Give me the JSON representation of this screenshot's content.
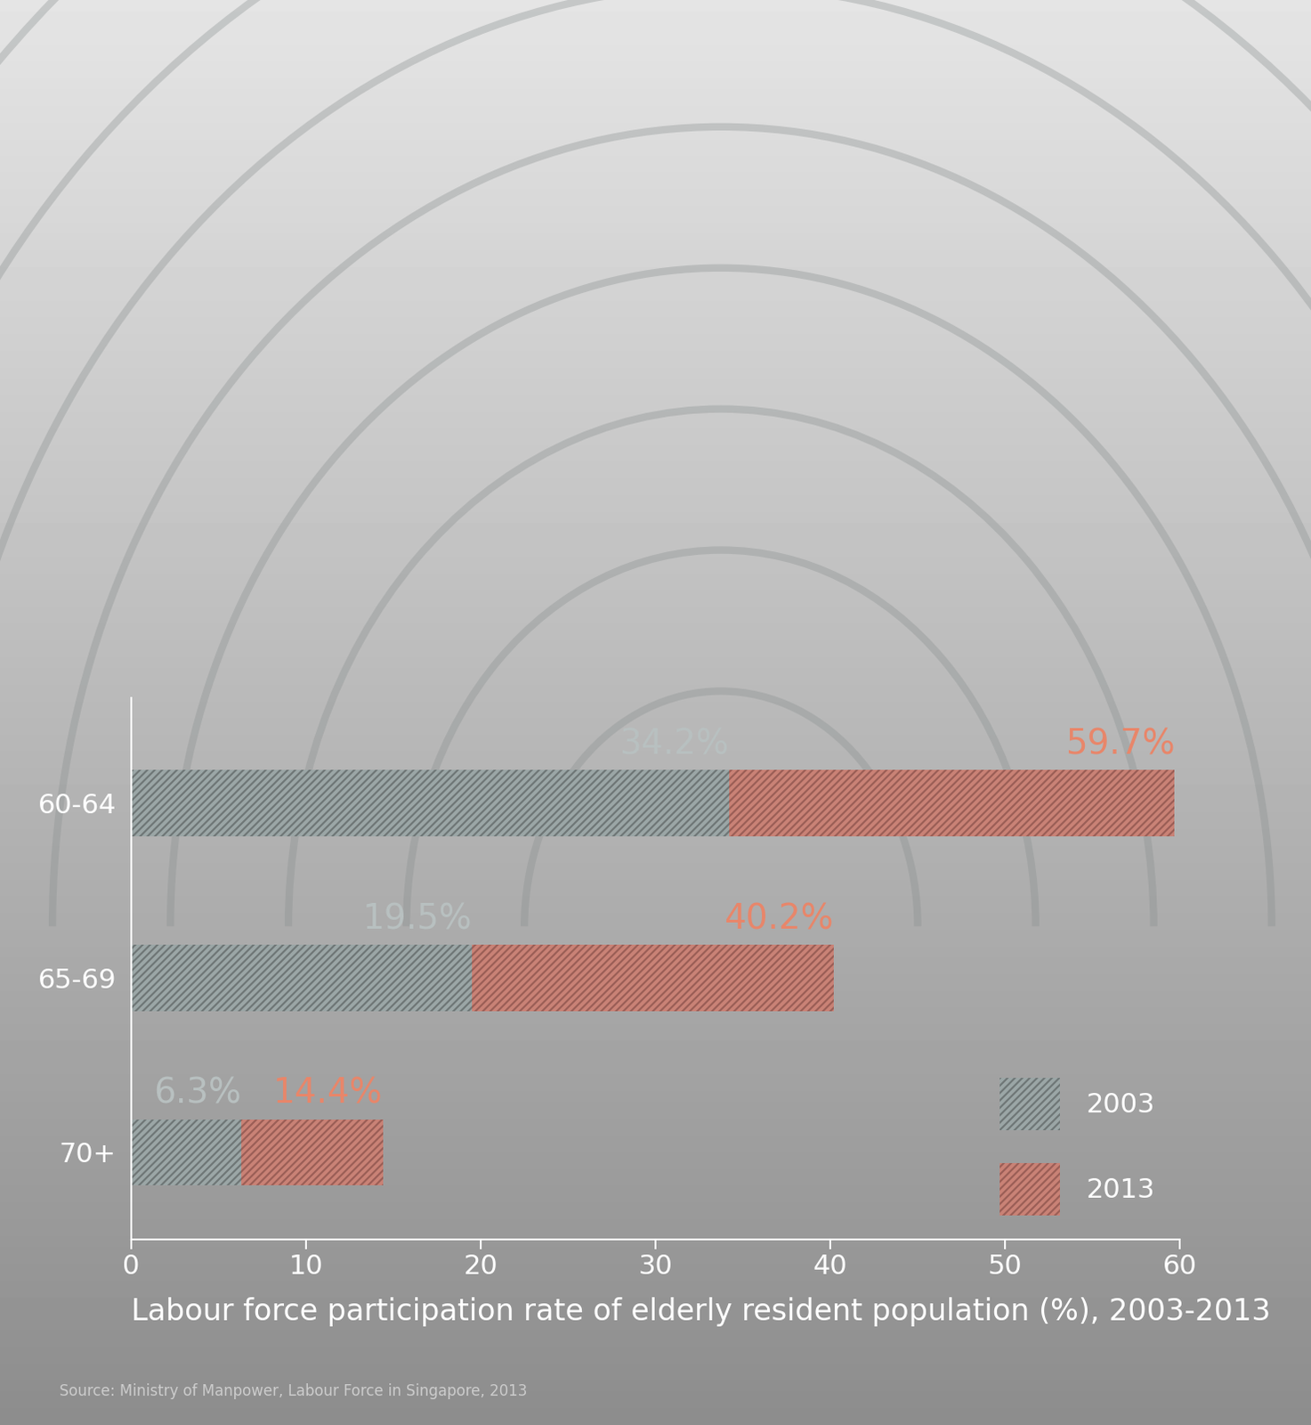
{
  "chart_data": {
    "type": "bar",
    "orientation": "horizontal",
    "xlabel": "Labour force participation rate of elderly resident population (%), 2003-2013",
    "annotations": [
      "Source: Ministry of Manpower, Labour Force in Singapore, 2013"
    ],
    "categories": [
      "60-64",
      "65-69",
      "70+"
    ],
    "series": [
      {
        "name": "2013",
        "color": "#c98276",
        "values": [
          59.7,
          40.2,
          14.4
        ],
        "value_labels": [
          "59.7%",
          "40.2%",
          "14.4%"
        ]
      },
      {
        "name": "2003",
        "color": "#9ba6a6",
        "values": [
          34.2,
          19.5,
          6.3
        ],
        "value_labels": [
          "34.2%",
          "19.5%",
          "6.3%"
        ]
      }
    ],
    "xlim": [
      0,
      60
    ],
    "xticks": [
      0,
      10,
      20,
      30,
      40,
      50,
      60
    ],
    "legend": "lower right",
    "data_labels": true,
    "grid": false
  }
}
